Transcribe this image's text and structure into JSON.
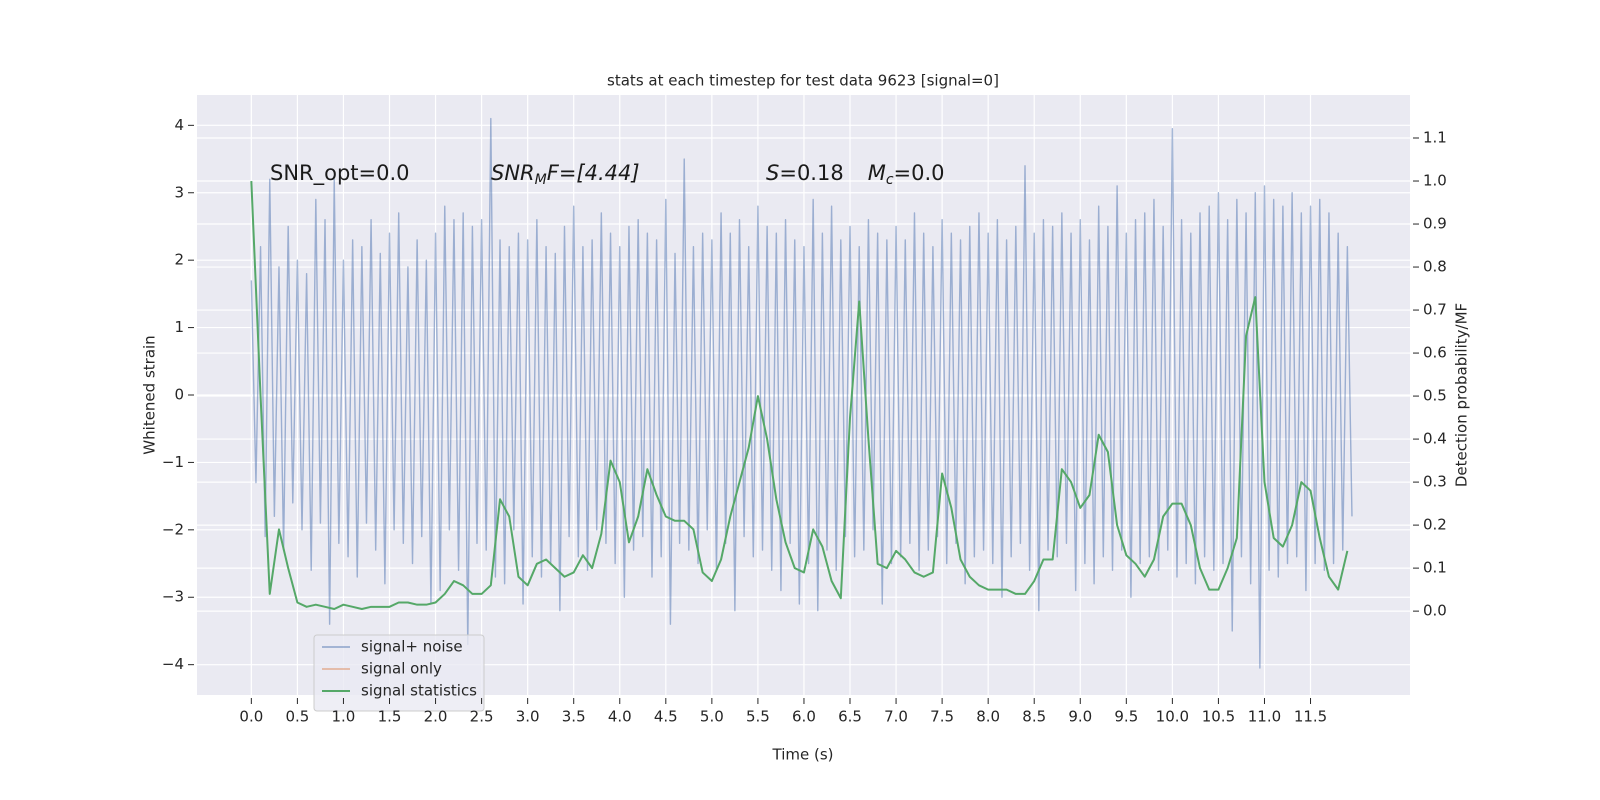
{
  "chart_data": {
    "type": "line",
    "title": "stats at each timestep for test data 9623 [signal=0]",
    "xlabel": "Time (s)",
    "ylabel": "Whitened strain",
    "y2label": "Detection probability/MF",
    "annotations": [
      {
        "parts": [
          "SNR_opt=0.0"
        ]
      },
      {
        "parts": [
          "SNR",
          "M",
          "F=[4.44]"
        ]
      },
      {
        "parts": [
          "S",
          "=0.18",
          "M",
          "c",
          "=0.0"
        ]
      }
    ],
    "xlim": [
      -0.59,
      12.58
    ],
    "ylim": [
      -4.45,
      4.45
    ],
    "y2lim": [
      -0.195,
      1.2
    ],
    "xticks": [
      {
        "value": 0,
        "label": "0.0"
      },
      {
        "value": 0.5,
        "label": "0.5"
      },
      {
        "value": 1,
        "label": "1.0"
      },
      {
        "value": 1.5,
        "label": "1.5"
      },
      {
        "value": 2,
        "label": "2.0"
      },
      {
        "value": 2.5,
        "label": "2.5"
      },
      {
        "value": 3,
        "label": "3.0"
      },
      {
        "value": 3.5,
        "label": "3.5"
      },
      {
        "value": 4,
        "label": "4.0"
      },
      {
        "value": 4.5,
        "label": "4.5"
      },
      {
        "value": 5,
        "label": "5.0"
      },
      {
        "value": 5.5,
        "label": "5.5"
      },
      {
        "value": 6,
        "label": "6.0"
      },
      {
        "value": 6.5,
        "label": "6.5"
      },
      {
        "value": 7,
        "label": "7.0"
      },
      {
        "value": 7.5,
        "label": "7.5"
      },
      {
        "value": 8,
        "label": "8.0"
      },
      {
        "value": 8.5,
        "label": "8.5"
      },
      {
        "value": 9,
        "label": "9.0"
      },
      {
        "value": 9.5,
        "label": "9.5"
      },
      {
        "value": 10,
        "label": "10.0"
      },
      {
        "value": 10.5,
        "label": "10.5"
      },
      {
        "value": 11,
        "label": "11.0"
      },
      {
        "value": 11.5,
        "label": "11.5"
      }
    ],
    "yticks": [
      {
        "value": -4,
        "label": "−4"
      },
      {
        "value": -3,
        "label": "−3"
      },
      {
        "value": -2,
        "label": "−2"
      },
      {
        "value": -1,
        "label": "−1"
      },
      0,
      1,
      2,
      3,
      4
    ],
    "y2ticks": [
      {
        "value": 0,
        "label": "0.0"
      },
      {
        "value": 0.1,
        "label": "0.1"
      },
      {
        "value": 0.2,
        "label": "0.2"
      },
      {
        "value": 0.3,
        "label": "0.3"
      },
      {
        "value": 0.4,
        "label": "0.4"
      },
      {
        "value": 0.5,
        "label": "0.5"
      },
      {
        "value": 0.6,
        "label": "0.6"
      },
      {
        "value": 0.7,
        "label": "0.7"
      },
      {
        "value": 0.8,
        "label": "0.8"
      },
      {
        "value": 0.9,
        "label": "0.9"
      },
      {
        "value": 1,
        "label": "1.0"
      },
      {
        "value": 1.1,
        "label": "1.1"
      }
    ],
    "grid": true,
    "legend": "lower left",
    "series": [
      {
        "name": "signal+ noise",
        "color": "#4c72b0",
        "x": [
          0,
          0.05,
          0.1,
          0.15,
          0.2,
          0.25,
          0.3,
          0.35,
          0.4,
          0.45,
          0.5,
          0.55,
          0.6,
          0.65,
          0.7,
          0.75,
          0.8,
          0.85,
          0.9,
          0.95,
          1,
          1.05,
          1.1,
          1.15,
          1.2,
          1.25,
          1.3,
          1.35,
          1.4,
          1.45,
          1.5,
          1.55,
          1.6,
          1.65,
          1.7,
          1.75,
          1.8,
          1.85,
          1.9,
          1.95,
          2,
          2.05,
          2.1,
          2.15,
          2.2,
          2.25,
          2.3,
          2.35,
          2.4,
          2.45,
          2.5,
          2.55,
          2.6,
          2.65,
          2.7,
          2.75,
          2.8,
          2.85,
          2.9,
          2.95,
          3,
          3.05,
          3.1,
          3.15,
          3.2,
          3.25,
          3.3,
          3.35,
          3.4,
          3.45,
          3.5,
          3.55,
          3.6,
          3.65,
          3.7,
          3.75,
          3.8,
          3.85,
          3.9,
          3.95,
          4,
          4.05,
          4.1,
          4.15,
          4.2,
          4.25,
          4.3,
          4.35,
          4.4,
          4.45,
          4.5,
          4.55,
          4.6,
          4.65,
          4.7,
          4.75,
          4.8,
          4.85,
          4.9,
          4.95,
          5,
          5.05,
          5.1,
          5.15,
          5.2,
          5.25,
          5.3,
          5.35,
          5.4,
          5.45,
          5.5,
          5.55,
          5.6,
          5.65,
          5.7,
          5.75,
          5.8,
          5.85,
          5.9,
          5.95,
          6,
          6.05,
          6.1,
          6.15,
          6.2,
          6.25,
          6.3,
          6.35,
          6.4,
          6.45,
          6.5,
          6.55,
          6.6,
          6.65,
          6.7,
          6.75,
          6.8,
          6.85,
          6.9,
          6.95,
          7,
          7.05,
          7.1,
          7.15,
          7.2,
          7.25,
          7.3,
          7.35,
          7.4,
          7.45,
          7.5,
          7.55,
          7.6,
          7.65,
          7.7,
          7.75,
          7.8,
          7.85,
          7.9,
          7.95,
          8,
          8.05,
          8.1,
          8.15,
          8.2,
          8.25,
          8.3,
          8.35,
          8.4,
          8.45,
          8.5,
          8.55,
          8.6,
          8.65,
          8.7,
          8.75,
          8.8,
          8.85,
          8.9,
          8.95,
          9,
          9.05,
          9.1,
          9.15,
          9.2,
          9.25,
          9.3,
          9.35,
          9.4,
          9.45,
          9.5,
          9.55,
          9.6,
          9.65,
          9.7,
          9.75,
          9.8,
          9.85,
          9.9,
          9.95,
          10,
          10.05,
          10.1,
          10.15,
          10.2,
          10.25,
          10.3,
          10.35,
          10.4,
          10.45,
          10.5,
          10.55,
          10.6,
          10.65,
          10.7,
          10.75,
          10.8,
          10.85,
          10.9,
          10.95,
          11,
          11.05,
          11.1,
          11.15,
          11.2,
          11.25,
          11.3,
          11.35,
          11.4,
          11.45,
          11.5,
          11.55,
          11.6,
          11.65,
          11.7,
          11.75,
          11.8,
          11.85,
          11.9,
          11.95
        ],
        "values": [
          1.7,
          -1.3,
          2.2,
          -2.1,
          3.2,
          -1.8,
          1.9,
          -2.3,
          2.5,
          -1.6,
          2.0,
          -2.0,
          1.8,
          -2.6,
          2.9,
          -1.9,
          2.6,
          -3.4,
          3.2,
          -2.2,
          2.0,
          -2.4,
          2.3,
          -2.7,
          2.2,
          -1.9,
          2.6,
          -2.3,
          2.1,
          -2.8,
          2.4,
          -2.0,
          2.7,
          -2.2,
          1.9,
          -2.5,
          2.3,
          -2.1,
          2.0,
          -3.1,
          2.4,
          -2.9,
          2.8,
          -2.0,
          2.6,
          -2.6,
          2.7,
          -3.7,
          2.5,
          -2.2,
          2.6,
          -2.3,
          4.1,
          -2.7,
          2.3,
          -2.8,
          2.2,
          -2.0,
          2.4,
          -3.1,
          2.3,
          -2.4,
          2.6,
          -2.7,
          2.2,
          -2.5,
          2.1,
          -3.2,
          2.5,
          -2.1,
          2.8,
          -2.4,
          2.2,
          -2.6,
          2.3,
          -2.0,
          2.7,
          -2.2,
          2.4,
          -2.5,
          2.2,
          -3.0,
          2.5,
          -2.3,
          2.6,
          -2.1,
          2.4,
          -2.7,
          2.3,
          -2.4,
          2.9,
          -3.4,
          2.1,
          -2.2,
          3.5,
          -2.3,
          2.2,
          -2.5,
          2.4,
          -2.0,
          2.3,
          -2.6,
          2.7,
          -2.2,
          2.4,
          -3.2,
          2.6,
          -2.1,
          2.2,
          -2.4,
          2.8,
          -2.3,
          2.5,
          -2.6,
          2.4,
          -2.9,
          2.6,
          -2.2,
          2.3,
          -3.1,
          2.2,
          -2.5,
          2.9,
          -3.2,
          2.4,
          -2.3,
          2.8,
          -2.6,
          2.3,
          -2.1,
          2.5,
          -2.4,
          2.2,
          -2.3,
          2.6,
          -2.0,
          2.4,
          -3.1,
          2.3,
          -2.5,
          2.5,
          -2.4,
          2.3,
          -2.2,
          2.7,
          -2.6,
          2.4,
          -2.3,
          2.2,
          -2.1,
          2.6,
          -2.5,
          2.4,
          -2.2,
          2.3,
          -2.8,
          2.5,
          -2.4,
          2.7,
          -2.3,
          2.4,
          -2.5,
          2.6,
          -3.0,
          2.3,
          -2.4,
          2.5,
          -2.2,
          3.4,
          -2.6,
          2.4,
          -3.2,
          2.6,
          -2.3,
          2.5,
          -2.4,
          2.7,
          -2.2,
          2.4,
          -2.9,
          2.6,
          -2.5,
          2.3,
          -2.8,
          2.8,
          -2.4,
          2.5,
          -2.6,
          3.1,
          -2.3,
          2.4,
          -3.0,
          2.6,
          -2.5,
          2.7,
          -2.4,
          2.9,
          -2.6,
          2.5,
          -2.3,
          3.95,
          -2.7,
          2.6,
          -2.5,
          2.4,
          -2.8,
          2.7,
          -2.4,
          2.8,
          -2.6,
          3.0,
          -2.5,
          2.6,
          -3.5,
          2.9,
          -2.4,
          2.7,
          -2.8,
          3.0,
          -4.05,
          3.1,
          -2.6,
          2.9,
          -2.7,
          2.8,
          -2.5,
          3.0,
          -2.4,
          2.7,
          -2.9,
          2.8,
          -2.5,
          2.9,
          -2.6,
          2.7,
          -2.5,
          2.4,
          -2.3,
          2.2,
          -1.8
        ]
      },
      {
        "name": "signal only",
        "color": "#dd8452"
      },
      {
        "name": "signal statistics",
        "color": "#55a868",
        "axis": "y2",
        "x": [
          0,
          0.1,
          0.2,
          0.3,
          0.4,
          0.5,
          0.6,
          0.7,
          0.8,
          0.9,
          1,
          1.1,
          1.2,
          1.3,
          1.4,
          1.5,
          1.6,
          1.7,
          1.8,
          1.9,
          2,
          2.1,
          2.2,
          2.3,
          2.4,
          2.5,
          2.6,
          2.7,
          2.8,
          2.9,
          3,
          3.1,
          3.2,
          3.3,
          3.4,
          3.5,
          3.6,
          3.7,
          3.8,
          3.9,
          4,
          4.1,
          4.2,
          4.3,
          4.4,
          4.5,
          4.6,
          4.7,
          4.8,
          4.9,
          5,
          5.1,
          5.2,
          5.3,
          5.4,
          5.5,
          5.6,
          5.7,
          5.8,
          5.9,
          6,
          6.1,
          6.2,
          6.3,
          6.4,
          6.5,
          6.6,
          6.7,
          6.8,
          6.9,
          7,
          7.1,
          7.2,
          7.3,
          7.4,
          7.5,
          7.6,
          7.7,
          7.8,
          7.9,
          8,
          8.1,
          8.2,
          8.3,
          8.4,
          8.5,
          8.6,
          8.7,
          8.8,
          8.9,
          9,
          9.1,
          9.2,
          9.3,
          9.4,
          9.5,
          9.6,
          9.7,
          9.8,
          9.9,
          10,
          10.1,
          10.2,
          10.3,
          10.4,
          10.5,
          10.6,
          10.7,
          10.8,
          10.9,
          11,
          11.1,
          11.2,
          11.3,
          11.4,
          11.5,
          11.6,
          11.7,
          11.8,
          11.9
        ],
        "values": [
          1.0,
          0.5,
          0.04,
          0.19,
          0.1,
          0.02,
          0.01,
          0.015,
          0.01,
          0.005,
          0.015,
          0.01,
          0.005,
          0.01,
          0.01,
          0.01,
          0.02,
          0.02,
          0.015,
          0.015,
          0.02,
          0.04,
          0.07,
          0.06,
          0.04,
          0.04,
          0.06,
          0.26,
          0.22,
          0.08,
          0.06,
          0.11,
          0.12,
          0.1,
          0.08,
          0.09,
          0.13,
          0.1,
          0.18,
          0.35,
          0.3,
          0.16,
          0.22,
          0.33,
          0.27,
          0.22,
          0.21,
          0.21,
          0.19,
          0.09,
          0.07,
          0.12,
          0.22,
          0.3,
          0.38,
          0.5,
          0.4,
          0.26,
          0.16,
          0.1,
          0.09,
          0.19,
          0.15,
          0.07,
          0.03,
          0.45,
          0.72,
          0.4,
          0.11,
          0.1,
          0.14,
          0.12,
          0.09,
          0.08,
          0.09,
          0.32,
          0.24,
          0.12,
          0.08,
          0.06,
          0.05,
          0.05,
          0.05,
          0.04,
          0.04,
          0.07,
          0.12,
          0.12,
          0.33,
          0.3,
          0.24,
          0.27,
          0.41,
          0.37,
          0.2,
          0.13,
          0.11,
          0.08,
          0.12,
          0.22,
          0.25,
          0.25,
          0.2,
          0.1,
          0.05,
          0.05,
          0.1,
          0.17,
          0.64,
          0.73,
          0.3,
          0.17,
          0.15,
          0.2,
          0.3,
          0.28,
          0.17,
          0.08,
          0.05,
          0.14
        ]
      }
    ]
  }
}
